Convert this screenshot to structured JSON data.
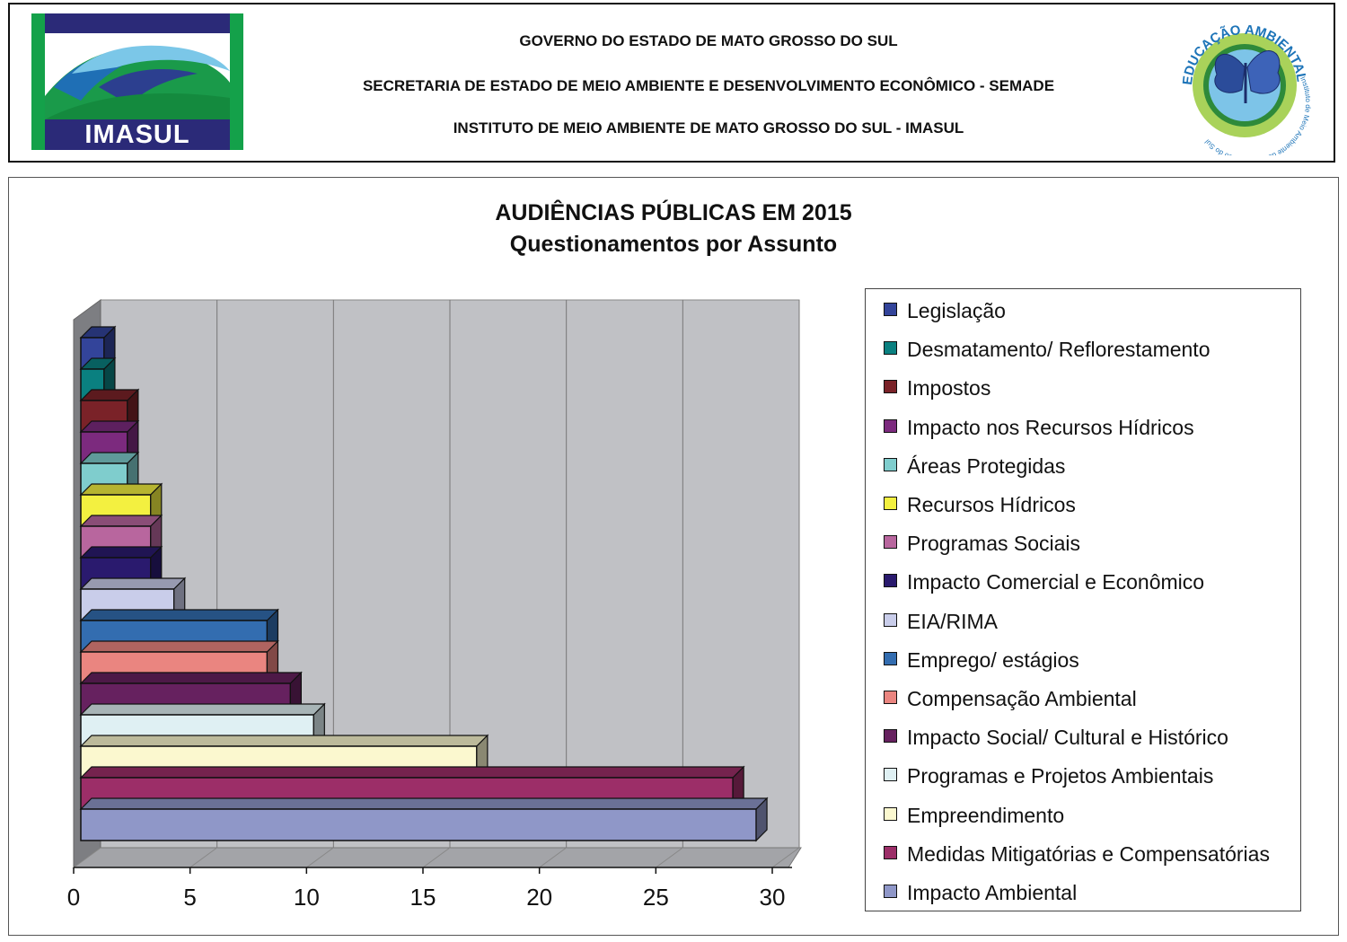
{
  "header": {
    "logo_left_text": "IMASUL",
    "line1": "GOVERNO DO ESTADO DE MATO GROSSO DO SUL",
    "line2": "SECRETARIA DE ESTADO DE MEIO AMBIENTE E DESENVOLVIMENTO ECONÔMICO - SEMADE",
    "line3": "INSTITUTO DE MEIO AMBIENTE DE MATO GROSSO DO SUL - IMASUL",
    "logo_right_top_text": "EDUCAÇÃO AMBIENTAL",
    "logo_right_bottom_text": "Instituto de Meio Ambiente de Mato Grosso do Sul"
  },
  "chart_data": {
    "type": "bar",
    "orientation": "horizontal",
    "style": "3d",
    "title": "AUDIÊNCIAS PÚBLICAS EM 2015",
    "subtitle": "Questionamentos por Assunto",
    "xlim": [
      0,
      30
    ],
    "xticks": [
      0,
      5,
      10,
      15,
      20,
      25,
      30
    ],
    "grid": true,
    "legend_position": "right",
    "series": [
      {
        "name": "Legislação",
        "value": 1,
        "color": "#33449a"
      },
      {
        "name": "Desmatamento/ Reflorestamento",
        "value": 1,
        "color": "#0a8080"
      },
      {
        "name": "Impostos",
        "value": 2,
        "color": "#7a2228"
      },
      {
        "name": "Impacto nos Recursos Hídricos",
        "value": 2,
        "color": "#7c2a7e"
      },
      {
        "name": "Áreas Protegidas",
        "value": 2,
        "color": "#7fcdcd"
      },
      {
        "name": "Recursos Hídricos",
        "value": 3,
        "color": "#f3f040"
      },
      {
        "name": "Programas Sociais",
        "value": 3,
        "color": "#b8669e"
      },
      {
        "name": "Impacto Comercial e Econômico",
        "value": 3,
        "color": "#2a1a6e"
      },
      {
        "name": "EIA/RIMA",
        "value": 4,
        "color": "#c9cdea"
      },
      {
        "name": "Emprego/ estágios",
        "value": 8,
        "color": "#336db0"
      },
      {
        "name": "Compensação Ambiental",
        "value": 8,
        "color": "#ea8580"
      },
      {
        "name": "Impacto Social/ Cultural e Histórico",
        "value": 9,
        "color": "#66215f"
      },
      {
        "name": "Programas e Projetos Ambientais",
        "value": 10,
        "color": "#dff0f3"
      },
      {
        "name": "Empreendimento",
        "value": 17,
        "color": "#fbf8cf"
      },
      {
        "name": "Medidas Mitigatórias e Compensatórias",
        "value": 28,
        "color": "#9c2e68"
      },
      {
        "name": "Impacto Ambiental",
        "value": 29,
        "color": "#8f97c8"
      }
    ]
  }
}
